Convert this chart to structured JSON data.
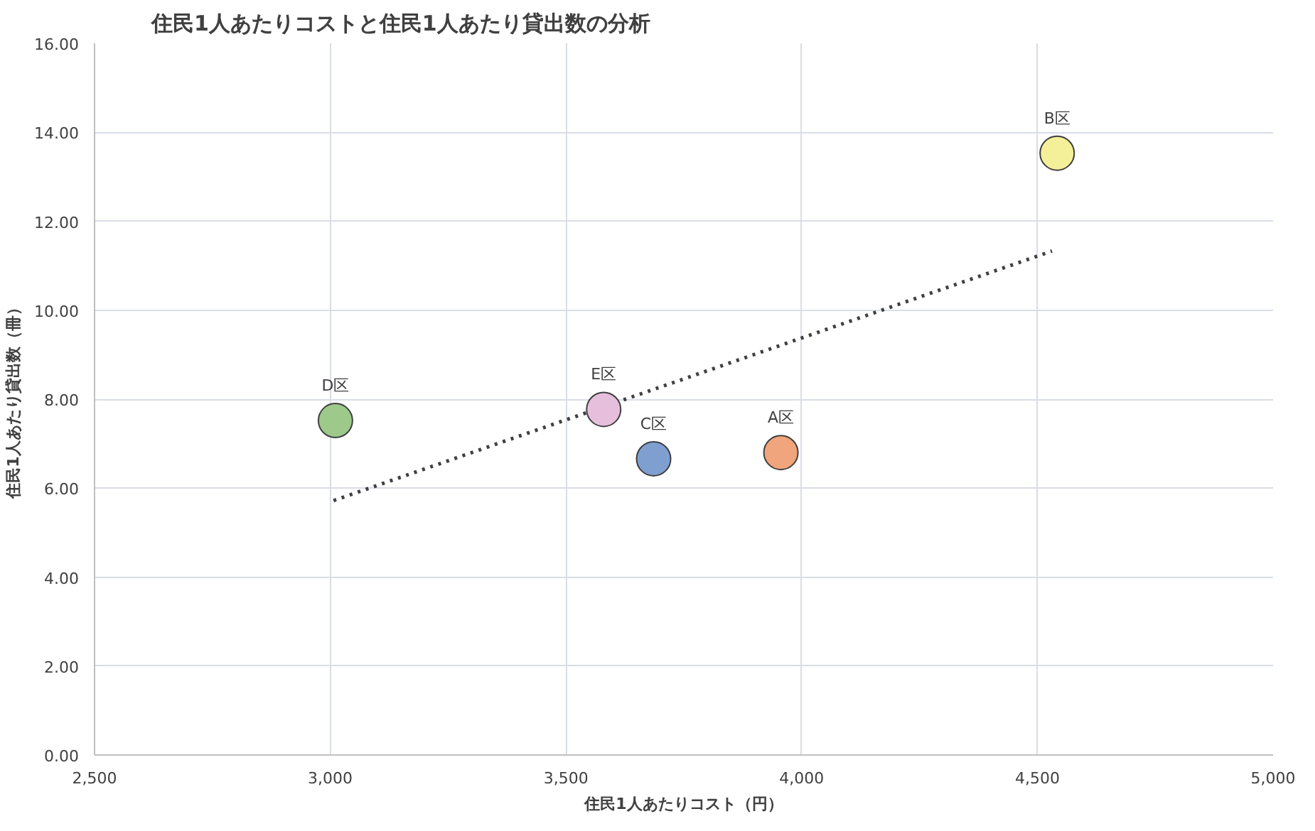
{
  "chart_data": {
    "type": "scatter",
    "title": "住民1人あたりコストと住民1人あたり貸出数の分析",
    "xlabel": "住民1人あたりコスト（円）",
    "ylabel": "住民1人あたり貸出数（冊）",
    "xlim": [
      2500,
      5000
    ],
    "xticks": [
      {
        "value": 2500,
        "label": "2,500"
      },
      {
        "value": 3000,
        "label": "3,000"
      },
      {
        "value": 3500,
        "label": "3,500"
      },
      {
        "value": 4000,
        "label": "4,000"
      },
      {
        "value": 4500,
        "label": "4,500"
      },
      {
        "value": 5000,
        "label": "5,000"
      }
    ],
    "ylim": [
      0,
      16
    ],
    "yticks": [
      {
        "value": 0,
        "label": "0.00"
      },
      {
        "value": 2,
        "label": "2.00"
      },
      {
        "value": 4,
        "label": "4.00"
      },
      {
        "value": 6,
        "label": "6.00"
      },
      {
        "value": 8,
        "label": "8.00"
      },
      {
        "value": 10,
        "label": "10.00"
      },
      {
        "value": 12,
        "label": "12.00"
      },
      {
        "value": 14,
        "label": "14.00"
      },
      {
        "value": 16,
        "label": "16.00"
      }
    ],
    "grid": true,
    "series": [
      {
        "marker": "circle",
        "x": [
          3956,
          4542,
          3686,
          3011,
          3580
        ],
        "values": [
          6.8,
          13.53,
          6.66,
          7.52,
          7.77
        ],
        "colors": [
          "#f0a57c",
          "#f4f09a",
          "#7f9fd1",
          "#9dc98a",
          "#e6bfdc"
        ]
      },
      {
        "type": "line",
        "x": [
          3007,
          4531
        ],
        "values": [
          5.72,
          11.33
        ],
        "color": "#404040",
        "line_style": "dotted",
        "marker": "none"
      }
    ],
    "annotations": [
      {
        "text": "A区",
        "x": 3956,
        "y": 6.8
      },
      {
        "text": "B区",
        "x": 4542,
        "y": 13.53
      },
      {
        "text": "C区",
        "x": 3686,
        "y": 6.66
      },
      {
        "text": "D区",
        "x": 3011,
        "y": 7.52
      },
      {
        "text": "E区",
        "x": 3580,
        "y": 7.77
      }
    ]
  }
}
